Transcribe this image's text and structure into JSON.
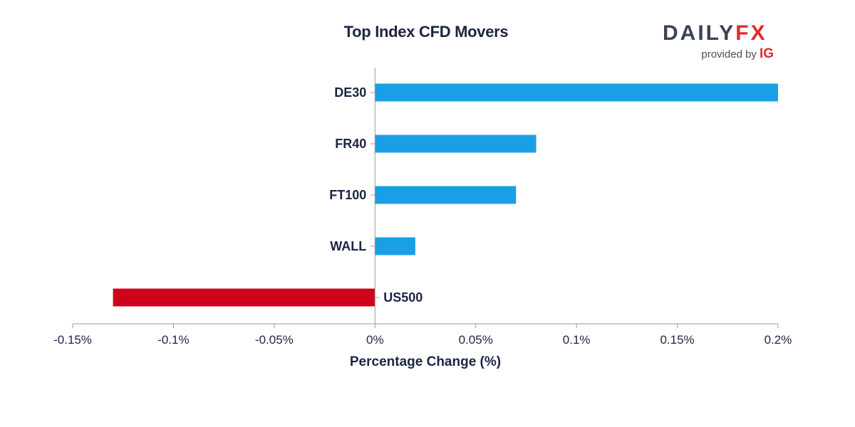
{
  "chart_data": {
    "type": "bar",
    "orientation": "horizontal",
    "title": "Top Index CFD Movers",
    "xlabel": "Percentage Change (%)",
    "ylabel": "",
    "categories": [
      "DE30",
      "FR40",
      "FT100",
      "WALL",
      "US500"
    ],
    "values": [
      0.2,
      0.08,
      0.07,
      0.02,
      -0.13
    ],
    "xlim": [
      -0.15,
      0.2
    ],
    "x_ticks": [
      -0.15,
      -0.1,
      -0.05,
      0,
      0.05,
      0.1,
      0.15,
      0.2
    ],
    "x_tick_labels": [
      "-0.15%",
      "-0.1%",
      "-0.05%",
      "0%",
      "0.05%",
      "0.1%",
      "0.15%",
      "0.2%"
    ],
    "grid": false,
    "colors": {
      "positive": "#1a9fe6",
      "negative": "#d0021b",
      "axis": "#9a9a9a",
      "text": "#1c2541"
    }
  },
  "brand": {
    "logo_part1": "DAILY",
    "logo_part2": "FX",
    "provided_by": "provided by",
    "provider": "IG"
  }
}
